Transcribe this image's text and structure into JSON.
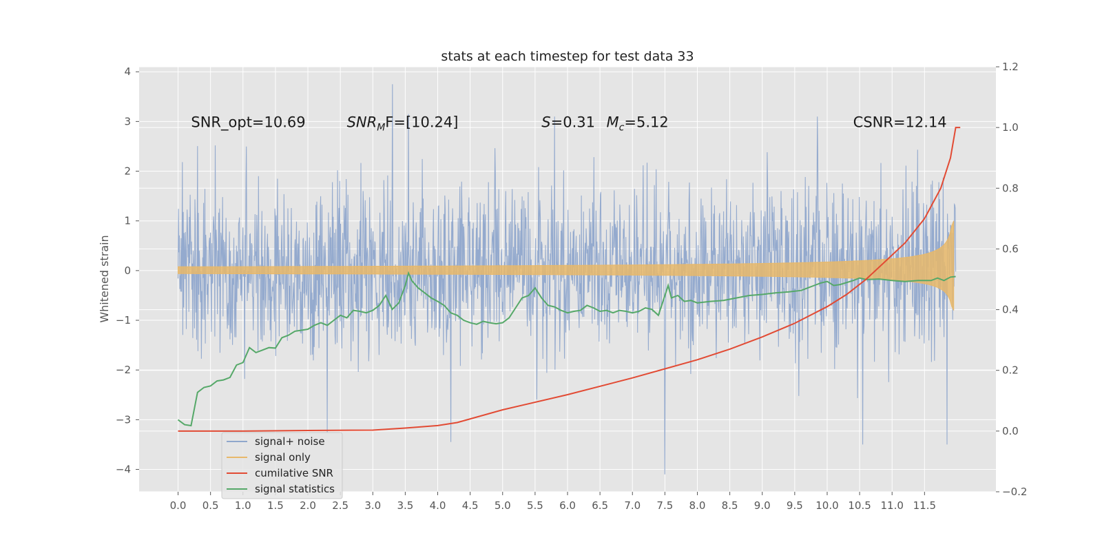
{
  "chart_data": {
    "type": "line",
    "title": "stats at each timestep for test data 33",
    "ylabel": "Whitened strain",
    "xlabel": "",
    "x_ticks": [
      "0.0",
      "0.5",
      "1.0",
      "1.5",
      "2.0",
      "2.5",
      "3.0",
      "3.5",
      "4.0",
      "4.5",
      "5.0",
      "5.5",
      "6.0",
      "6.5",
      "7.0",
      "7.5",
      "8.0",
      "8.5",
      "9.0",
      "9.5",
      "10.0",
      "10.5",
      "11.0",
      "11.5"
    ],
    "y_left_ticks": [
      "−4",
      "−3",
      "−2",
      "−1",
      "0",
      "1",
      "2",
      "3",
      "4"
    ],
    "y_right_ticks": [
      "−0.2",
      "0.0",
      "0.2",
      "0.4",
      "0.6",
      "0.8",
      "1.0",
      "1.2"
    ],
    "xlim": [
      -0.6,
      12.6
    ],
    "ylim_left": [
      -4.45,
      4.1
    ],
    "ylim_right": [
      -0.2,
      1.2
    ],
    "grid": true,
    "legend_position": "lower-left",
    "annotations": [
      {
        "prefix": "SNR_opt=10.69",
        "sub": "",
        "suffix": "",
        "x": 0.2
      },
      {
        "prefix": "SNR",
        "sub": "M",
        "suffix": "F=[10.24]",
        "x": 2.6,
        "italic": true
      },
      {
        "prefix": "S",
        "sub": "",
        "suffix": "=0.31",
        "x": 5.6,
        "italic": true
      },
      {
        "prefix": "M",
        "sub": "c",
        "suffix": "=5.12",
        "x": 6.6,
        "italic": true
      },
      {
        "prefix": "CSNR=12.14",
        "sub": "",
        "suffix": "",
        "x": 10.4
      }
    ],
    "series": [
      {
        "name": "signal+ noise",
        "axis": "left",
        "color": "#8fa7cc",
        "description": "whitened noisy strain, roughly Gaussian with sigma about 0.85 and spikes between -4.1 and 3.75",
        "seed": 33,
        "sigma": 0.85,
        "x_range": [
          0.0,
          11.98
        ],
        "points": 1800,
        "spikes": [
          [
            3.3,
            3.75
          ],
          [
            4.2,
            -3.45
          ],
          [
            7.5,
            -4.1
          ],
          [
            2.3,
            -3.25
          ],
          [
            6.0,
            1.3
          ],
          [
            6.0,
            -1.0
          ],
          [
            11.85,
            -3.5
          ],
          [
            10.55,
            -3.5
          ],
          [
            3.55,
            3.15
          ],
          [
            5.8,
            3.1
          ],
          [
            9.85,
            3.1
          ]
        ]
      },
      {
        "name": "signal only",
        "axis": "left",
        "color": "#e8b86a",
        "description": "chirp signal envelope growing from ~0.02 to ~1.0 amplitude near merger at 11.9",
        "x_range": [
          0.0,
          11.95
        ],
        "peak_amplitude": 1.0
      },
      {
        "name": "cumilative SNR",
        "axis": "right",
        "color": "#e24a33",
        "x": [
          0.0,
          1.0,
          2.0,
          3.0,
          3.5,
          4.0,
          4.3,
          5.0,
          6.0,
          7.0,
          7.5,
          8.0,
          8.5,
          9.0,
          9.5,
          10.0,
          10.3,
          10.6,
          10.9,
          11.2,
          11.5,
          11.75,
          11.9,
          11.98
        ],
        "values": [
          0.0,
          0.0,
          0.002,
          0.003,
          0.01,
          0.018,
          0.028,
          0.07,
          0.12,
          0.175,
          0.205,
          0.235,
          0.27,
          0.31,
          0.355,
          0.41,
          0.45,
          0.5,
          0.56,
          0.62,
          0.7,
          0.8,
          0.9,
          1.0
        ]
      },
      {
        "name": "signal statistics",
        "axis": "left",
        "color": "#55a868",
        "x": [
          0.0,
          0.1,
          0.2,
          0.3,
          0.4,
          0.5,
          0.6,
          0.7,
          0.8,
          0.9,
          1.0,
          1.1,
          1.2,
          1.3,
          1.4,
          1.5,
          1.6,
          1.7,
          1.8,
          1.9,
          2.0,
          2.1,
          2.2,
          2.3,
          2.4,
          2.5,
          2.6,
          2.7,
          2.8,
          2.9,
          3.0,
          3.1,
          3.2,
          3.3,
          3.4,
          3.5,
          3.55,
          3.6,
          3.7,
          3.8,
          3.9,
          4.0,
          4.1,
          4.2,
          4.3,
          4.4,
          4.5,
          4.6,
          4.7,
          4.8,
          4.9,
          5.0,
          5.1,
          5.2,
          5.3,
          5.4,
          5.5,
          5.6,
          5.7,
          5.8,
          5.9,
          6.0,
          6.1,
          6.2,
          6.3,
          6.4,
          6.5,
          6.6,
          6.7,
          6.8,
          6.9,
          7.0,
          7.1,
          7.2,
          7.3,
          7.4,
          7.5,
          7.55,
          7.6,
          7.7,
          7.8,
          7.9,
          8.0,
          8.2,
          8.4,
          8.6,
          8.8,
          9.0,
          9.2,
          9.4,
          9.6,
          9.7,
          9.8,
          9.9,
          10.0,
          10.1,
          10.2,
          10.4,
          10.5,
          10.6,
          10.8,
          11.0,
          11.2,
          11.4,
          11.6,
          11.7,
          11.8,
          11.9,
          11.98
        ],
        "values": [
          -3.0,
          -3.1,
          -3.12,
          -2.45,
          -2.35,
          -2.32,
          -2.22,
          -2.2,
          -2.15,
          -1.9,
          -1.85,
          -1.55,
          -1.65,
          -1.6,
          -1.55,
          -1.56,
          -1.35,
          -1.3,
          -1.22,
          -1.2,
          -1.18,
          -1.1,
          -1.05,
          -1.1,
          -1.0,
          -0.9,
          -0.95,
          -0.8,
          -0.82,
          -0.85,
          -0.8,
          -0.7,
          -0.5,
          -0.78,
          -0.65,
          -0.3,
          -0.05,
          -0.2,
          -0.35,
          -0.45,
          -0.55,
          -0.62,
          -0.7,
          -0.85,
          -0.9,
          -1.0,
          -1.05,
          -1.08,
          -1.02,
          -1.05,
          -1.07,
          -1.05,
          -0.95,
          -0.75,
          -0.55,
          -0.5,
          -0.35,
          -0.55,
          -0.7,
          -0.73,
          -0.8,
          -0.85,
          -0.82,
          -0.8,
          -0.7,
          -0.75,
          -0.82,
          -0.8,
          -0.85,
          -0.8,
          -0.82,
          -0.85,
          -0.82,
          -0.75,
          -0.78,
          -0.9,
          -0.5,
          -0.3,
          -0.55,
          -0.5,
          -0.62,
          -0.6,
          -0.65,
          -0.62,
          -0.6,
          -0.55,
          -0.5,
          -0.48,
          -0.45,
          -0.43,
          -0.4,
          -0.35,
          -0.3,
          -0.25,
          -0.22,
          -0.3,
          -0.28,
          -0.2,
          -0.15,
          -0.18,
          -0.17,
          -0.2,
          -0.22,
          -0.2,
          -0.2,
          -0.15,
          -0.2,
          -0.13,
          -0.12
        ]
      }
    ]
  },
  "legend": {
    "items": [
      {
        "label": "signal+ noise",
        "color": "#8fa7cc"
      },
      {
        "label": "signal only",
        "color": "#e8b86a"
      },
      {
        "label": "cumilative SNR",
        "color": "#e24a33"
      },
      {
        "label": "signal statistics",
        "color": "#55a868"
      }
    ]
  }
}
